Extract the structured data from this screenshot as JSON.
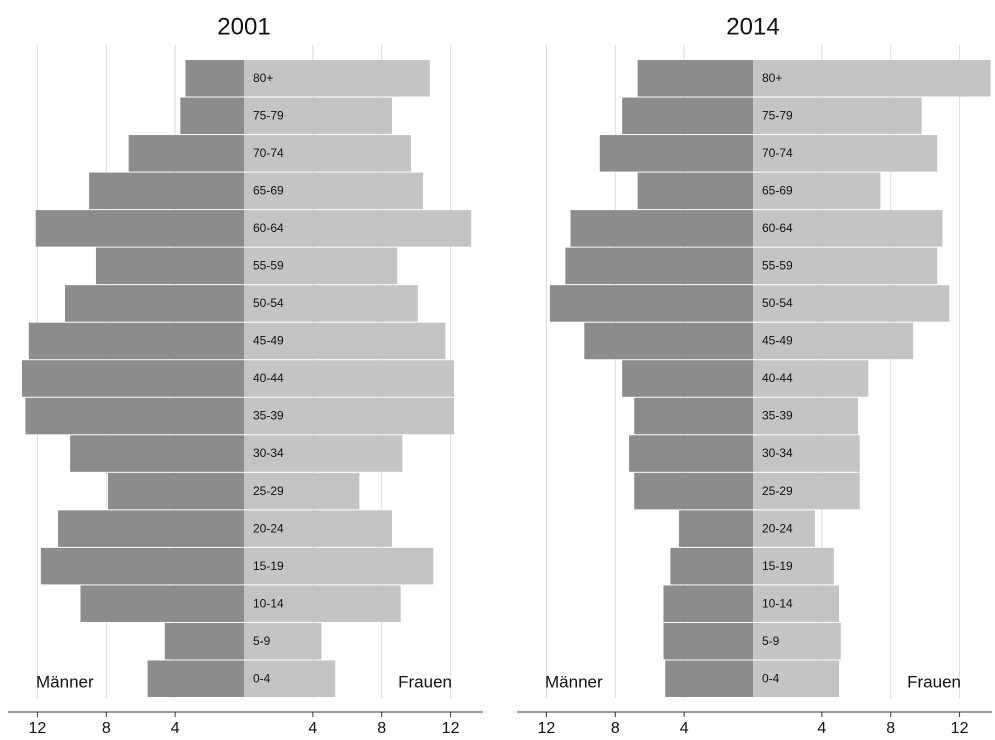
{
  "chart_data": [
    {
      "type": "pyramid",
      "title": "2001",
      "categories": [
        "80+",
        "75-79",
        "70-74",
        "65-69",
        "60-64",
        "55-59",
        "50-54",
        "45-49",
        "40-44",
        "35-39",
        "30-34",
        "25-29",
        "20-24",
        "15-19",
        "10-14",
        "5-9",
        "0-4"
      ],
      "series": [
        {
          "name": "Männer",
          "color": "#8c8c8c",
          "values": [
            -3.4,
            -3.7,
            -6.7,
            -9.0,
            -12.1,
            -8.6,
            -10.4,
            -12.5,
            -12.9,
            -12.7,
            -10.1,
            -7.9,
            -10.8,
            -11.8,
            -9.5,
            -4.6,
            -5.6
          ]
        },
        {
          "name": "Frauen",
          "color": "#c4c4c4",
          "values": [
            10.8,
            8.6,
            9.7,
            10.4,
            13.2,
            8.9,
            10.1,
            11.7,
            12.2,
            12.2,
            9.2,
            6.7,
            8.6,
            11.0,
            9.1,
            4.5,
            5.3
          ]
        }
      ],
      "xlim": [
        -14,
        14
      ],
      "xticks": [
        {
          "value": -12,
          "label": "12"
        },
        {
          "value": -8,
          "label": "8"
        },
        {
          "value": -4,
          "label": "4"
        },
        4,
        8,
        12
      ],
      "grid": true
    },
    {
      "type": "pyramid",
      "title": "2014",
      "categories": [
        "80+",
        "75-79",
        "70-74",
        "65-69",
        "60-64",
        "55-59",
        "50-54",
        "45-49",
        "40-44",
        "35-39",
        "30-34",
        "25-29",
        "20-24",
        "15-19",
        "10-14",
        "5-9",
        "0-4"
      ],
      "series": [
        {
          "name": "Männer",
          "color": "#8c8c8c",
          "values": [
            -6.7,
            -7.6,
            -8.9,
            -6.7,
            -10.6,
            -10.9,
            -11.8,
            -9.8,
            -7.6,
            -6.9,
            -7.2,
            -6.9,
            -4.3,
            -4.8,
            -5.2,
            -5.2,
            -5.1
          ]
        },
        {
          "name": "Frauen",
          "color": "#c4c4c4",
          "values": [
            13.8,
            9.8,
            10.7,
            7.4,
            11.0,
            10.7,
            11.4,
            9.3,
            6.7,
            6.1,
            6.2,
            6.2,
            3.6,
            4.7,
            5.0,
            5.1,
            5.0
          ]
        }
      ],
      "xlim": [
        -14,
        14
      ],
      "xticks": [
        {
          "value": -12,
          "label": "12"
        },
        {
          "value": -8,
          "label": "8"
        },
        {
          "value": -4,
          "label": "4"
        },
        4,
        8,
        12
      ],
      "grid": true
    }
  ]
}
